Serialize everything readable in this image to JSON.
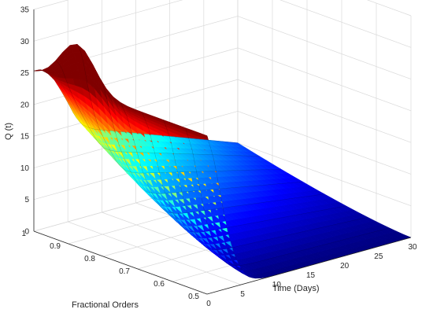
{
  "chart_data": {
    "type": "surface",
    "title": "",
    "xlabel": "Time (Days)",
    "ylabel": "Fractional Orders",
    "zlabel": "Q (t)",
    "xlim": [
      0,
      30
    ],
    "ylim": [
      0.5,
      1
    ],
    "zlim": [
      0,
      35
    ],
    "x_ticks": [
      "0",
      "5",
      "10",
      "15",
      "20",
      "25",
      "30"
    ],
    "y_ticks": [
      "0.5",
      "0.6",
      "0.7",
      "0.8",
      "0.9",
      "1"
    ],
    "z_ticks": [
      "0",
      "5",
      "10",
      "15",
      "20",
      "25",
      "30",
      "35"
    ],
    "grid": true,
    "colormap": "jet",
    "fractional_orders": [
      1.0,
      0.95,
      0.9,
      0.85,
      0.8,
      0.75,
      0.7,
      0.65,
      0.6,
      0.55,
      0.5
    ],
    "x_days": [
      0,
      1,
      2,
      3,
      4,
      5,
      6,
      7,
      8,
      9,
      10,
      12,
      15,
      20,
      25,
      30
    ],
    "Q_at_order_1": [
      25,
      25,
      24.3,
      23,
      21,
      18.8,
      16.5,
      14.8,
      14,
      13.4,
      13,
      12.2,
      11,
      9,
      7,
      5
    ],
    "Q_at_order_0_5": [
      25,
      21,
      15,
      9,
      5,
      2.5,
      1,
      0.4,
      0.15,
      0.05,
      0,
      0,
      0,
      0,
      0,
      0
    ],
    "Q_peak_over_orders": {
      "order": 0.875,
      "Q": 32
    },
    "colors": {
      "surface_high": "#ff0000",
      "surface_low": "#00008f",
      "gridline": "#d9d9d9"
    }
  }
}
